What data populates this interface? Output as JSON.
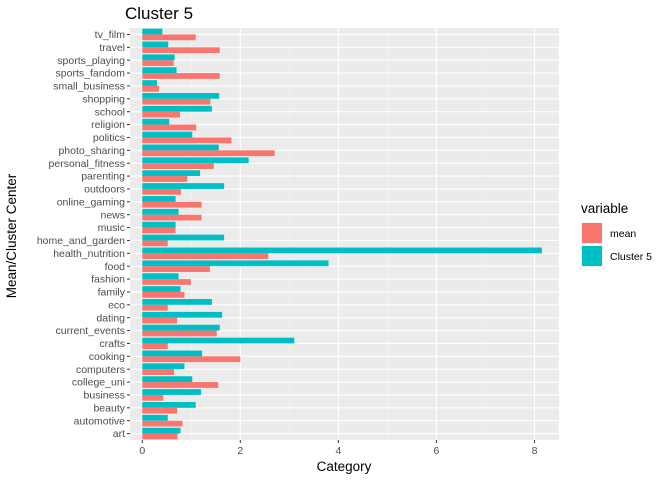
{
  "chart_data": {
    "type": "bar",
    "orientation": "horizontal",
    "title": "Cluster 5",
    "xlabel": "Category",
    "ylabel": "Mean/Cluster Center",
    "xlim": [
      -0.25,
      8.5
    ],
    "xticks": [
      0,
      2,
      4,
      6,
      8
    ],
    "grid": true,
    "legend": {
      "title": "variable",
      "position": "right"
    },
    "categories": [
      "art",
      "automotive",
      "beauty",
      "business",
      "college_uni",
      "computers",
      "cooking",
      "crafts",
      "current_events",
      "dating",
      "eco",
      "family",
      "fashion",
      "food",
      "health_nutrition",
      "home_and_garden",
      "music",
      "news",
      "online_gaming",
      "outdoors",
      "parenting",
      "personal_fitness",
      "photo_sharing",
      "politics",
      "religion",
      "school",
      "shopping",
      "small_business",
      "sports_fandom",
      "sports_playing",
      "travel",
      "tv_film"
    ],
    "series": [
      {
        "name": "mean",
        "color": "#F8766D",
        "values": [
          0.72,
          0.82,
          0.71,
          0.43,
          1.55,
          0.65,
          2.0,
          0.52,
          1.52,
          0.71,
          0.52,
          0.86,
          0.99,
          1.38,
          2.57,
          0.52,
          0.68,
          1.21,
          1.21,
          0.79,
          0.92,
          1.46,
          2.7,
          1.82,
          1.1,
          0.77,
          1.39,
          0.34,
          1.58,
          0.64,
          1.58,
          1.09
        ]
      },
      {
        "name": "Cluster 5",
        "color": "#00BFC4",
        "values": [
          0.78,
          0.52,
          1.09,
          1.2,
          1.02,
          0.86,
          1.22,
          3.1,
          1.58,
          1.63,
          1.42,
          0.78,
          0.74,
          3.8,
          8.15,
          1.67,
          0.68,
          0.74,
          0.68,
          1.67,
          1.18,
          2.17,
          1.56,
          1.02,
          0.55,
          1.42,
          1.57,
          0.3,
          0.7,
          0.66,
          0.53,
          0.41
        ]
      }
    ]
  }
}
